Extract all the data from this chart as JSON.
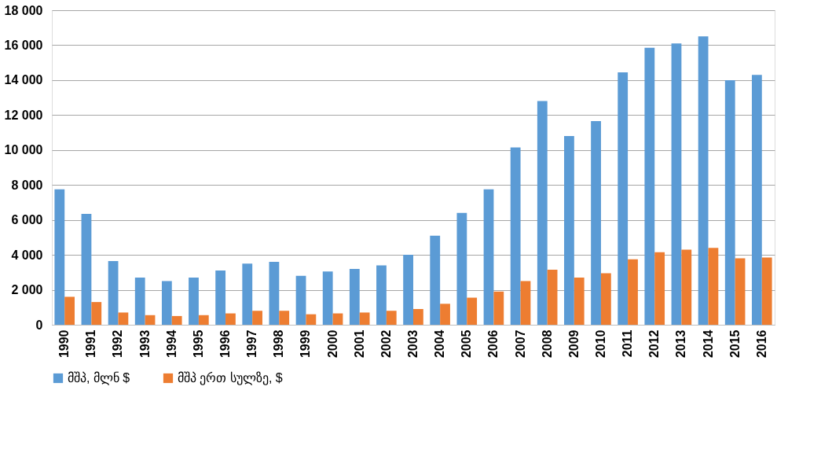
{
  "chart_data": {
    "type": "bar",
    "categories": [
      "1990",
      "1991",
      "1992",
      "1993",
      "1994",
      "1995",
      "1996",
      "1997",
      "1998",
      "1999",
      "2000",
      "2001",
      "2002",
      "2003",
      "2004",
      "2005",
      "2006",
      "2007",
      "2008",
      "2009",
      "2010",
      "2011",
      "2012",
      "2013",
      "2014",
      "2015",
      "2016"
    ],
    "series": [
      {
        "name": "მშპ, მლნ $",
        "color": "#5b9bd5",
        "values": [
          7750,
          6350,
          3650,
          2700,
          2500,
          2700,
          3100,
          3500,
          3600,
          2800,
          3050,
          3200,
          3400,
          4000,
          5100,
          6400,
          7750,
          10150,
          12800,
          10800,
          11650,
          14450,
          15850,
          16100,
          16500,
          14000,
          14300
        ]
      },
      {
        "name": "მშპ ერთ სულზე, $",
        "color": "#ed7d31",
        "values": [
          1600,
          1300,
          700,
          550,
          500,
          550,
          650,
          800,
          800,
          600,
          650,
          700,
          800,
          900,
          1200,
          1550,
          1900,
          2500,
          3150,
          2700,
          2950,
          3750,
          4150,
          4300,
          4400,
          3800,
          3850
        ]
      }
    ],
    "ylim": [
      0,
      18000
    ],
    "yticks": [
      0,
      {
        "value": 2000,
        "label": "2 000"
      },
      {
        "value": 4000,
        "label": "4 000"
      },
      {
        "value": 6000,
        "label": "6 000"
      },
      {
        "value": 8000,
        "label": "8 000"
      },
      {
        "value": 10000,
        "label": "10 000"
      },
      {
        "value": 12000,
        "label": "12 000"
      },
      {
        "value": 14000,
        "label": "14 000"
      },
      {
        "value": 16000,
        "label": "16 000"
      },
      {
        "value": 18000,
        "label": "18 000"
      }
    ],
    "grid": "y",
    "legend": "bottom"
  }
}
